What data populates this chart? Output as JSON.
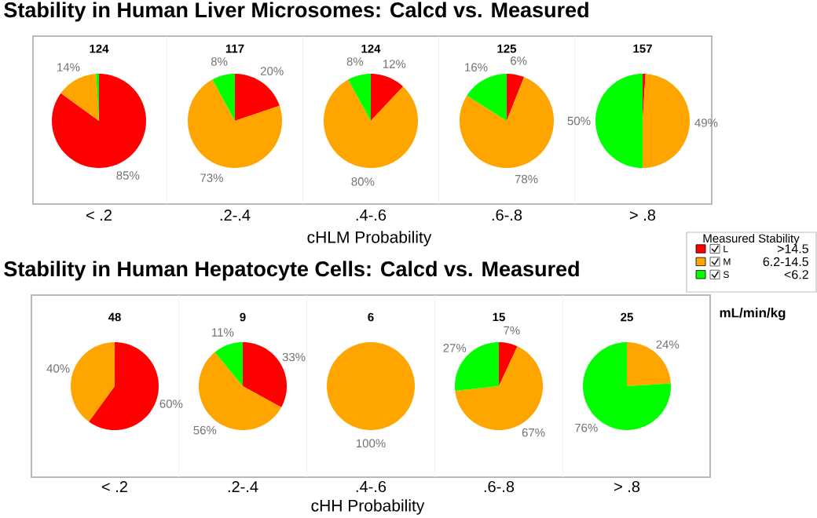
{
  "chart_data": [
    {
      "type": "other",
      "title": "Stability in Human Liver Microsomes: Calcd vs. Measured",
      "xlabel": "cHLM Probability"
    },
    {
      "type": "pie",
      "title": "124",
      "xlabel": "< .2",
      "categories": [
        null,
        null,
        null
      ],
      "values": [
        85,
        14,
        1
      ],
      "colors": [
        "#ff0000",
        "#ffa500",
        "#00ff00"
      ],
      "value_labels": [
        "85%",
        "14%",
        null
      ]
    },
    {
      "type": "pie",
      "title": "117",
      "xlabel": ".2-.4",
      "categories": [
        null,
        null,
        null
      ],
      "values": [
        20,
        73,
        8
      ],
      "colors": [
        "#ff0000",
        "#ffa500",
        "#00ff00"
      ],
      "value_labels": [
        "20%",
        "73%",
        "8%"
      ]
    },
    {
      "type": "pie",
      "title": "124",
      "xlabel": ".4-.6",
      "categories": [
        null,
        null,
        null
      ],
      "values": [
        12,
        80,
        8
      ],
      "colors": [
        "#ff0000",
        "#ffa500",
        "#00ff00"
      ],
      "value_labels": [
        "12%",
        "80%",
        "8%"
      ]
    },
    {
      "type": "pie",
      "title": "125",
      "xlabel": ".6-.8",
      "categories": [
        null,
        null,
        null
      ],
      "values": [
        6,
        78,
        16
      ],
      "colors": [
        "#ff0000",
        "#ffa500",
        "#00ff00"
      ],
      "value_labels": [
        "6%",
        "78%",
        "16%"
      ]
    },
    {
      "type": "pie",
      "title": "157",
      "xlabel": "> .8",
      "categories": [
        null,
        null,
        null
      ],
      "values": [
        1,
        49,
        50
      ],
      "colors": [
        "#ff0000",
        "#ffa500",
        "#00ff00"
      ],
      "value_labels": [
        null,
        "49%",
        "50%"
      ]
    },
    {
      "type": "other",
      "legend_title": "Measured Stability",
      "categories": [
        "L",
        "M",
        "S"
      ],
      "annotations": [
        ">14.5",
        "6.2-14.5",
        "<6.2",
        "mL/min/kg"
      ]
    },
    {
      "type": "other",
      "title": "Stability in Human Hepatocyte Cells: Calcd vs. Measured",
      "xlabel": "cHH Probability"
    },
    {
      "type": "pie",
      "title": "48",
      "xlabel": "< .2",
      "categories": [
        null,
        null,
        null
      ],
      "values": [
        60,
        40,
        0
      ],
      "colors": [
        "#ff0000",
        "#ffa500",
        "#00ff00"
      ],
      "value_labels": [
        "60%",
        "40%",
        null
      ]
    },
    {
      "type": "pie",
      "title": "9",
      "xlabel": ".2-.4",
      "categories": [
        null,
        null,
        null
      ],
      "values": [
        33,
        56,
        11
      ],
      "colors": [
        "#ff0000",
        "#ffa500",
        "#00ff00"
      ],
      "value_labels": [
        "33%",
        "56%",
        "11%"
      ]
    },
    {
      "type": "pie",
      "title": "6",
      "xlabel": ".4-.6",
      "categories": [
        null,
        null,
        null
      ],
      "values": [
        0,
        100,
        0
      ],
      "colors": [
        "#ff0000",
        "#ffa500",
        "#00ff00"
      ],
      "value_labels": [
        null,
        "100%",
        null
      ]
    },
    {
      "type": "pie",
      "title": "15",
      "xlabel": ".6-.8",
      "categories": [
        null,
        null,
        null
      ],
      "values": [
        7,
        67,
        27
      ],
      "colors": [
        "#ff0000",
        "#ffa500",
        "#00ff00"
      ],
      "value_labels": [
        "7%",
        "67%",
        "27%"
      ]
    },
    {
      "type": "pie",
      "title": "25",
      "xlabel": "> .8",
      "categories": [
        null,
        null,
        null
      ],
      "values": [
        0,
        24,
        76
      ],
      "colors": [
        "#ff0000",
        "#ffa500",
        "#00ff00"
      ],
      "value_labels": [
        null,
        "24%",
        "76%"
      ]
    }
  ]
}
